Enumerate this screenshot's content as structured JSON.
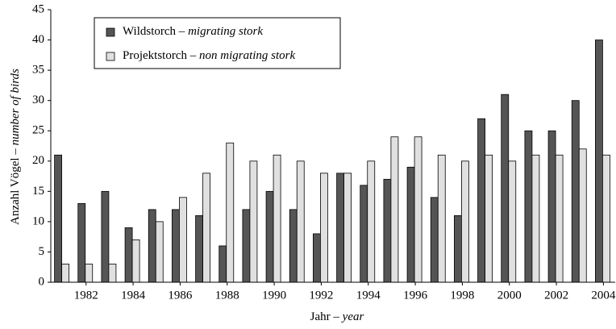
{
  "chart_data": {
    "type": "bar",
    "x_label": "Jahr – year",
    "y_label": "Anzahl Vögel – number of birds",
    "categories": [
      null,
      "1982",
      null,
      "1984",
      null,
      "1986",
      null,
      "1988",
      null,
      "1990",
      null,
      "1992",
      null,
      "1994",
      null,
      "1996",
      null,
      "1998",
      null,
      "2000",
      null,
      "2002",
      null,
      "2004"
    ],
    "series": [
      {
        "name": "Wildstorch – migrating stork",
        "color": "#555555",
        "values": [
          21,
          13,
          15,
          9,
          12,
          12,
          11,
          6,
          12,
          15,
          12,
          8,
          18,
          16,
          17,
          19,
          14,
          11,
          27,
          31,
          25,
          25,
          30,
          40
        ]
      },
      {
        "name": "Projektstorch – non migrating stork",
        "color": "#e0e0e0",
        "values": [
          3,
          3,
          3,
          7,
          10,
          14,
          18,
          23,
          20,
          21,
          20,
          18,
          18,
          20,
          24,
          24,
          21,
          20,
          21,
          20,
          21,
          21,
          22,
          21
        ]
      }
    ],
    "ylim": [
      0,
      45
    ],
    "yticks": [
      0,
      5,
      10,
      15,
      20,
      25,
      30,
      35,
      40,
      45
    ],
    "legend": "upper left"
  }
}
